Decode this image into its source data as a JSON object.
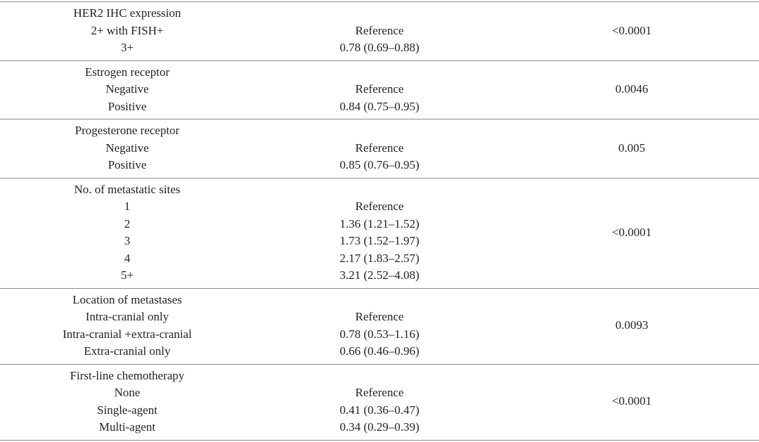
{
  "table": {
    "groups": [
      {
        "label": "HER2 IHC expression",
        "rows": [
          {
            "name": "2+ with FISH+",
            "hr": "Reference"
          },
          {
            "name": "3+",
            "hr": "0.78 (0.69–0.88)"
          }
        ],
        "p": "<0.0001"
      },
      {
        "label": "Estrogen receptor",
        "rows": [
          {
            "name": "Negative",
            "hr": "Reference"
          },
          {
            "name": "Positive",
            "hr": "0.84 (0.75–0.95)"
          }
        ],
        "p": "0.0046"
      },
      {
        "label": "Progesterone receptor",
        "rows": [
          {
            "name": "Negative",
            "hr": "Reference"
          },
          {
            "name": "Positive",
            "hr": "0.85 (0.76–0.95)"
          }
        ],
        "p": "0.005"
      },
      {
        "label": "No. of metastatic sites",
        "rows": [
          {
            "name": "1",
            "hr": "Reference"
          },
          {
            "name": "2",
            "hr": "1.36 (1.21–1.52)"
          },
          {
            "name": "3",
            "hr": "1.73 (1.52–1.97)"
          },
          {
            "name": "4",
            "hr": "2.17 (1.83–2.57)"
          },
          {
            "name": "5+",
            "hr": "3.21 (2.52–4.08)"
          }
        ],
        "p": "<0.0001"
      },
      {
        "label": "Location of metastases",
        "rows": [
          {
            "name": "Intra-cranial only",
            "hr": "Reference"
          },
          {
            "name": "Intra-cranial +extra-cranial",
            "hr": "0.78 (0.53–1.16)"
          },
          {
            "name": "Extra-cranial only",
            "hr": "0.66 (0.46–0.96)"
          }
        ],
        "p": "0.0093"
      },
      {
        "label": "First-line chemotherapy",
        "rows": [
          {
            "name": "None",
            "hr": "Reference"
          },
          {
            "name": "Single-agent",
            "hr": "0.41 (0.36–0.47)"
          },
          {
            "name": "Multi-agent",
            "hr": "0.34 (0.29–0.39)"
          }
        ],
        "p": "<0.0001"
      }
    ]
  }
}
